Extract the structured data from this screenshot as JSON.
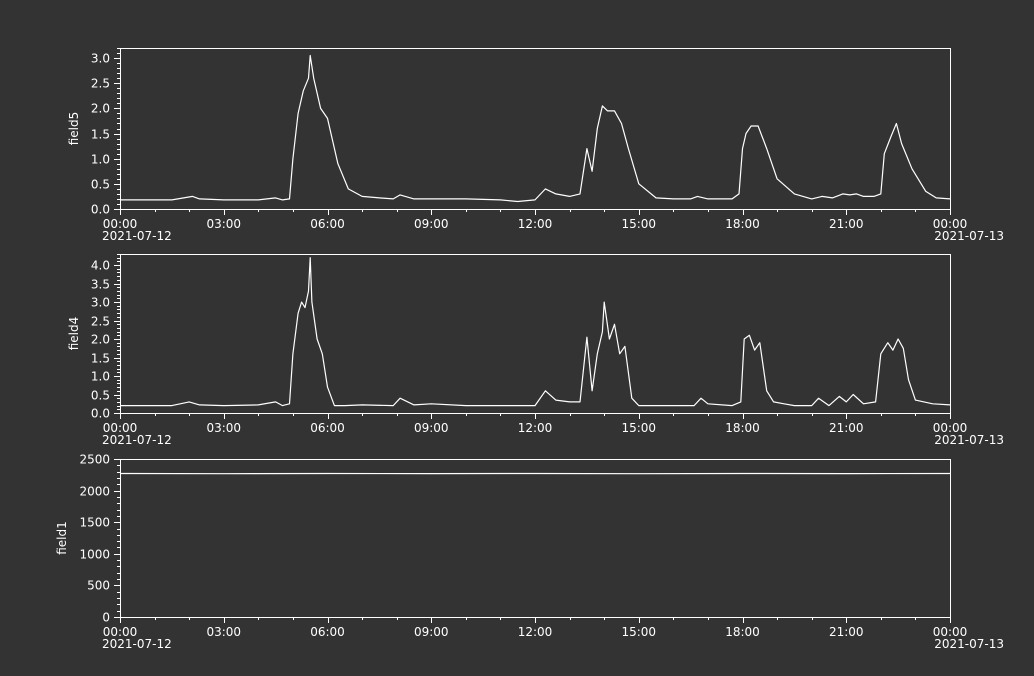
{
  "colors": {
    "background": "#333333",
    "foreground": "#ffffff"
  },
  "chart_data": [
    {
      "type": "line",
      "ylabel": "field5",
      "ylim": [
        0,
        3.2
      ],
      "yticks": [
        "0.0",
        "0.5",
        "1.0",
        "1.5",
        "2.0",
        "2.5",
        "3.0"
      ],
      "ytick_values": [
        0,
        0.5,
        1.0,
        1.5,
        2.0,
        2.5,
        3.0
      ],
      "xticks": [
        "00:00",
        "03:00",
        "06:00",
        "09:00",
        "12:00",
        "15:00",
        "18:00",
        "21:00",
        "00:00"
      ],
      "xtick_hours": [
        0,
        3,
        6,
        9,
        12,
        15,
        18,
        21,
        24
      ],
      "date_start": "2021-07-12",
      "date_end": "2021-07-13",
      "series": [
        {
          "x": [
            0,
            1.5,
            2.1,
            2.3,
            3.0,
            4.0,
            4.5,
            4.7,
            4.9,
            5.0,
            5.15,
            5.3,
            5.45,
            5.5,
            5.6,
            5.8,
            6.0,
            6.3,
            6.6,
            7.0,
            7.5,
            7.9,
            8.1,
            8.5,
            9.0,
            10.0,
            11.0,
            11.5,
            12.0,
            12.3,
            12.6,
            13.0,
            13.3,
            13.5,
            13.65,
            13.8,
            13.95,
            14.1,
            14.3,
            14.5,
            14.7,
            15.0,
            15.5,
            16.0,
            16.5,
            16.7,
            17.0,
            17.7,
            17.9,
            18.0,
            18.1,
            18.25,
            18.45,
            18.7,
            19.0,
            19.5,
            20.0,
            20.3,
            20.6,
            20.9,
            21.1,
            21.3,
            21.5,
            21.8,
            22.0,
            22.1,
            22.3,
            22.45,
            22.6,
            22.9,
            23.3,
            23.6,
            24.0
          ],
          "y": [
            0.18,
            0.18,
            0.25,
            0.2,
            0.18,
            0.18,
            0.22,
            0.18,
            0.2,
            1.0,
            1.9,
            2.35,
            2.6,
            3.05,
            2.6,
            2.0,
            1.8,
            0.9,
            0.4,
            0.25,
            0.22,
            0.2,
            0.28,
            0.2,
            0.2,
            0.2,
            0.18,
            0.15,
            0.18,
            0.4,
            0.3,
            0.25,
            0.3,
            1.2,
            0.75,
            1.6,
            2.05,
            1.95,
            1.95,
            1.7,
            1.2,
            0.5,
            0.22,
            0.2,
            0.2,
            0.25,
            0.2,
            0.2,
            0.3,
            1.2,
            1.5,
            1.65,
            1.65,
            1.2,
            0.6,
            0.3,
            0.2,
            0.25,
            0.22,
            0.3,
            0.28,
            0.3,
            0.25,
            0.25,
            0.3,
            1.1,
            1.45,
            1.7,
            1.3,
            0.8,
            0.35,
            0.22,
            0.2
          ]
        }
      ]
    },
    {
      "type": "line",
      "ylabel": "field4",
      "ylim": [
        0,
        4.3
      ],
      "yticks": [
        "0.0",
        "0.5",
        "1.0",
        "1.5",
        "2.0",
        "2.5",
        "3.0",
        "3.5",
        "4.0"
      ],
      "ytick_values": [
        0,
        0.5,
        1.0,
        1.5,
        2.0,
        2.5,
        3.0,
        3.5,
        4.0
      ],
      "xticks": [
        "00:00",
        "03:00",
        "06:00",
        "09:00",
        "12:00",
        "15:00",
        "18:00",
        "21:00",
        "00:00"
      ],
      "xtick_hours": [
        0,
        3,
        6,
        9,
        12,
        15,
        18,
        21,
        24
      ],
      "date_start": "2021-07-12",
      "date_end": "2021-07-13",
      "series": [
        {
          "x": [
            0,
            1.5,
            2.0,
            2.3,
            3.0,
            4.0,
            4.5,
            4.7,
            4.9,
            5.0,
            5.15,
            5.25,
            5.35,
            5.45,
            5.5,
            5.55,
            5.7,
            5.85,
            6.0,
            6.2,
            6.5,
            7.0,
            7.9,
            8.1,
            8.5,
            9.0,
            10.0,
            11.0,
            12.0,
            12.3,
            12.6,
            13.0,
            13.3,
            13.5,
            13.65,
            13.8,
            13.95,
            14.0,
            14.15,
            14.3,
            14.45,
            14.6,
            14.8,
            15.0,
            15.5,
            16.0,
            16.6,
            16.8,
            17.0,
            17.7,
            17.95,
            18.05,
            18.2,
            18.35,
            18.5,
            18.7,
            18.9,
            19.2,
            19.5,
            20.0,
            20.2,
            20.5,
            20.8,
            21.0,
            21.2,
            21.5,
            21.85,
            22.0,
            22.2,
            22.35,
            22.5,
            22.65,
            22.8,
            23.0,
            23.5,
            24.0
          ],
          "y": [
            0.2,
            0.2,
            0.3,
            0.22,
            0.2,
            0.22,
            0.3,
            0.2,
            0.25,
            1.6,
            2.7,
            3.0,
            2.85,
            3.3,
            4.2,
            3.0,
            2.0,
            1.6,
            0.7,
            0.2,
            0.2,
            0.22,
            0.2,
            0.4,
            0.22,
            0.25,
            0.2,
            0.2,
            0.2,
            0.6,
            0.35,
            0.3,
            0.3,
            2.05,
            0.6,
            1.6,
            2.2,
            3.0,
            2.0,
            2.4,
            1.6,
            1.8,
            0.4,
            0.2,
            0.2,
            0.2,
            0.2,
            0.4,
            0.25,
            0.2,
            0.3,
            2.0,
            2.1,
            1.7,
            1.9,
            0.6,
            0.3,
            0.25,
            0.2,
            0.2,
            0.4,
            0.2,
            0.45,
            0.3,
            0.5,
            0.25,
            0.3,
            1.6,
            1.9,
            1.7,
            2.0,
            1.75,
            0.9,
            0.35,
            0.25,
            0.22
          ]
        }
      ]
    },
    {
      "type": "line",
      "ylabel": "field1",
      "ylim": [
        0,
        2500
      ],
      "yticks": [
        "0",
        "500",
        "1000",
        "1500",
        "2000",
        "2500"
      ],
      "ytick_values": [
        0,
        500,
        1000,
        1500,
        2000,
        2500
      ],
      "xticks": [
        "00:00",
        "03:00",
        "06:00",
        "09:00",
        "12:00",
        "15:00",
        "18:00",
        "21:00",
        "00:00"
      ],
      "xtick_hours": [
        0,
        3,
        6,
        9,
        12,
        15,
        18,
        21,
        24
      ],
      "date_start": "2021-07-12",
      "date_end": "2021-07-13",
      "series": [
        {
          "x": [
            0,
            3,
            6,
            9,
            12,
            15,
            18,
            21,
            24
          ],
          "y": [
            2270,
            2268,
            2271,
            2269,
            2270,
            2268,
            2270,
            2269,
            2270
          ]
        }
      ]
    }
  ]
}
